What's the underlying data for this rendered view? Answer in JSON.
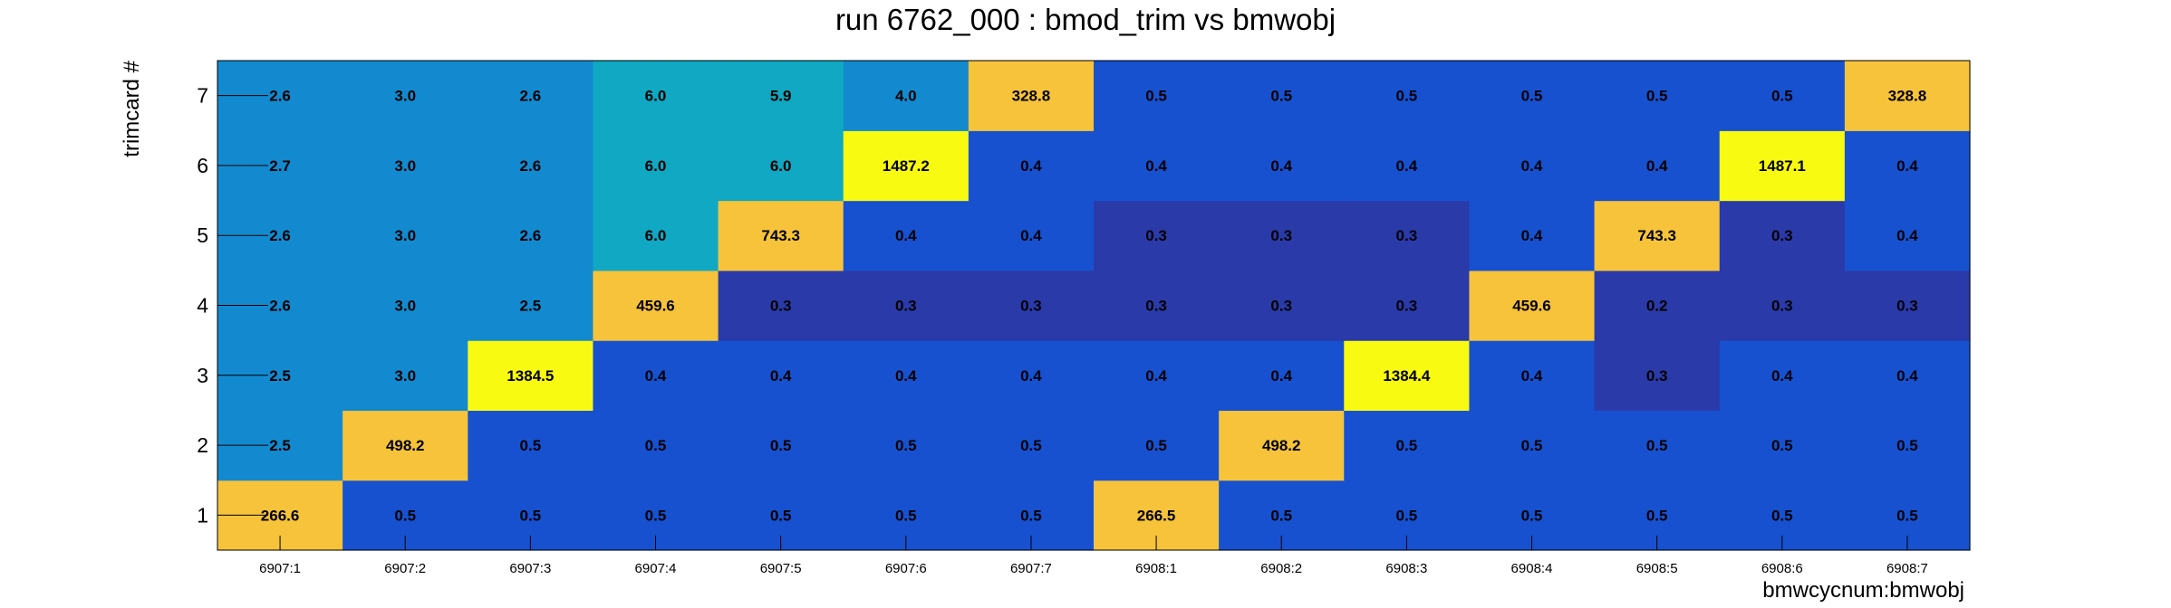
{
  "chart_data": {
    "type": "heatmap",
    "title": "run 6762_000 : bmod_trim vs bmwobj",
    "xlabel": "bmwcycnum:bmwobj",
    "ylabel": "trimcard #",
    "x_categories": [
      "6907:1",
      "6907:2",
      "6907:3",
      "6907:4",
      "6907:5",
      "6907:6",
      "6907:7",
      "6908:1",
      "6908:2",
      "6908:3",
      "6908:4",
      "6908:5",
      "6908:6",
      "6908:7"
    ],
    "y_categories": [
      "1",
      "2",
      "3",
      "4",
      "5",
      "6",
      "7"
    ],
    "values": [
      [
        "266.6",
        "0.5",
        "0.5",
        "0.5",
        "0.5",
        "0.5",
        "0.5",
        "266.5",
        "0.5",
        "0.5",
        "0.5",
        "0.5",
        "0.5",
        "0.5"
      ],
      [
        "2.5",
        "498.2",
        "0.5",
        "0.5",
        "0.5",
        "0.5",
        "0.5",
        "0.5",
        "498.2",
        "0.5",
        "0.5",
        "0.5",
        "0.5",
        "0.5"
      ],
      [
        "2.5",
        "3.0",
        "1384.5",
        "0.4",
        "0.4",
        "0.4",
        "0.4",
        "0.4",
        "0.4",
        "1384.4",
        "0.4",
        "0.3",
        "0.4",
        "0.4"
      ],
      [
        "2.6",
        "3.0",
        "2.5",
        "459.6",
        "0.3",
        "0.3",
        "0.3",
        "0.3",
        "0.3",
        "0.3",
        "459.6",
        "0.2",
        "0.3",
        "0.3"
      ],
      [
        "2.6",
        "3.0",
        "2.6",
        "6.0",
        "743.3",
        "0.4",
        "0.4",
        "0.3",
        "0.3",
        "0.3",
        "0.4",
        "743.3",
        "0.3",
        "0.4"
      ],
      [
        "2.7",
        "3.0",
        "2.6",
        "6.0",
        "6.0",
        "1487.2",
        "0.4",
        "0.4",
        "0.4",
        "0.4",
        "0.4",
        "0.4",
        "1487.1",
        "0.4"
      ],
      [
        "2.6",
        "3.0",
        "2.6",
        "6.0",
        "5.9",
        "4.0",
        "328.8",
        "0.5",
        "0.5",
        "0.5",
        "0.5",
        "0.5",
        "0.5",
        "328.8"
      ]
    ],
    "colors": {
      "dark_navy": "#2a3aa8",
      "blue": "#1751cf",
      "mid_blue": "#138acf",
      "teal": "#10a8c2",
      "gold": "#f6c33b",
      "yellow": "#f9fa12"
    }
  }
}
